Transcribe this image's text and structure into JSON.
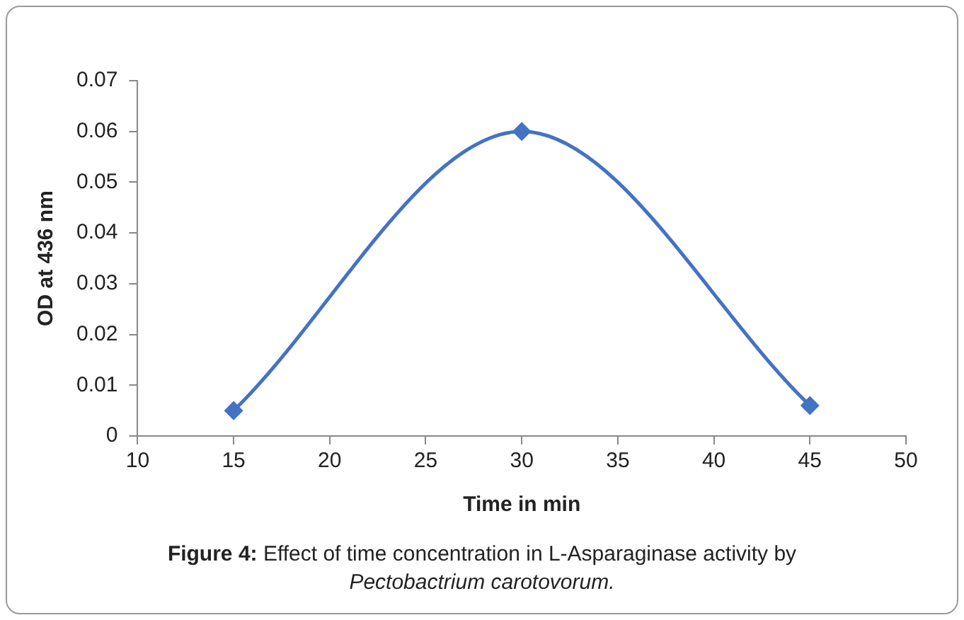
{
  "chart_data": {
    "type": "line",
    "xlabel": "Time in min",
    "ylabel": "OD at 436 nm",
    "x": [
      15,
      30,
      45
    ],
    "series": [
      {
        "color": "#4472c4",
        "values": [
          0.005,
          0.06,
          0.006
        ]
      }
    ],
    "xlim": [
      10,
      50
    ],
    "xticks": [
      10,
      15,
      20,
      25,
      30,
      35,
      40,
      45,
      50
    ],
    "ylim": [
      0,
      0.07
    ],
    "yticks": [
      0,
      0.01,
      0.02,
      0.03,
      0.04,
      0.05,
      0.06,
      0.07
    ],
    "grid": false,
    "legend": false,
    "marker": "diamond",
    "line_style": "solid",
    "annotations": [
      "Figure 4:",
      "Effect of time concentration in L-Asparaginase activity by",
      "Pectobactrium carotovorum."
    ]
  }
}
